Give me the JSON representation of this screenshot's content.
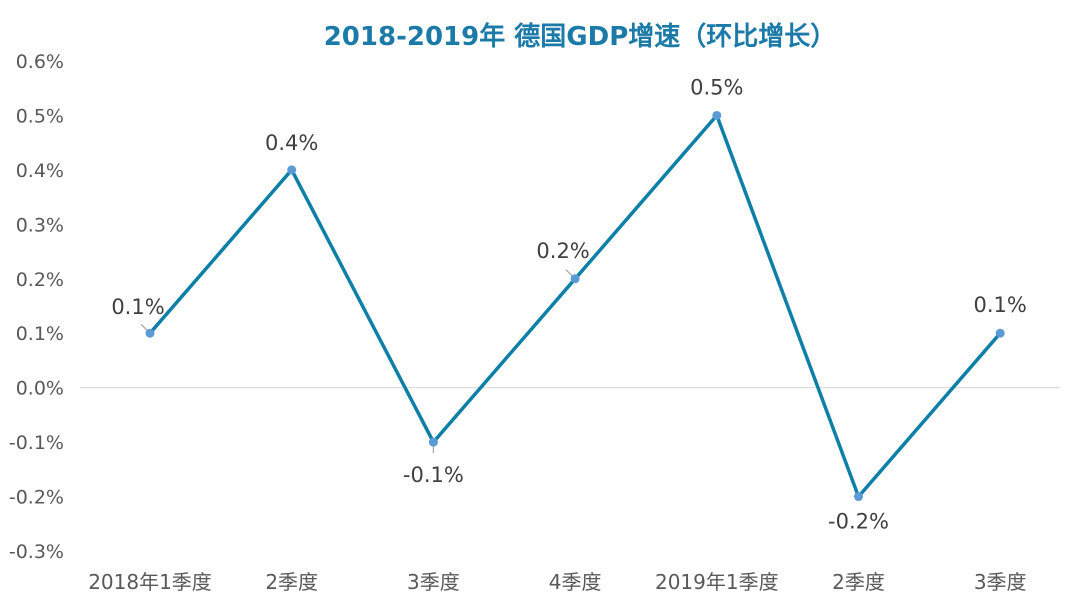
{
  "chart_data": {
    "type": "line",
    "title": "2018-2019年 德国GDP增速（环比增长）",
    "categories": [
      "2018年1季度",
      "2季度",
      "3季度",
      "4季度",
      "2019年1季度",
      "2季度",
      "3季度"
    ],
    "series": [
      {
        "values": [
          0.1,
          0.4,
          -0.1,
          0.2,
          0.5,
          -0.2,
          0.1
        ]
      }
    ],
    "data_labels": [
      "0.1%",
      "0.4%",
      "-0.1%",
      "0.2%",
      "0.5%",
      "-0.2%",
      "0.1%"
    ],
    "y_ticks": [
      "0.6%",
      "0.5%",
      "0.4%",
      "0.3%",
      "0.2%",
      "0.1%",
      "0.0%",
      "-0.1%",
      "-0.2%",
      "-0.3%"
    ],
    "y_tick_values": [
      0.6,
      0.5,
      0.4,
      0.3,
      0.2,
      0.1,
      0.0,
      -0.1,
      -0.2,
      -0.3
    ],
    "ylim": [
      -0.3,
      0.6
    ],
    "xlabel": "",
    "ylabel": "",
    "grid": false,
    "legend": "none",
    "colors": {
      "line": "#0e7fa6",
      "marker": "#5b9bd5",
      "title": "#1b7aa8",
      "axis": "#d9d9d9",
      "text": "#595959"
    }
  }
}
